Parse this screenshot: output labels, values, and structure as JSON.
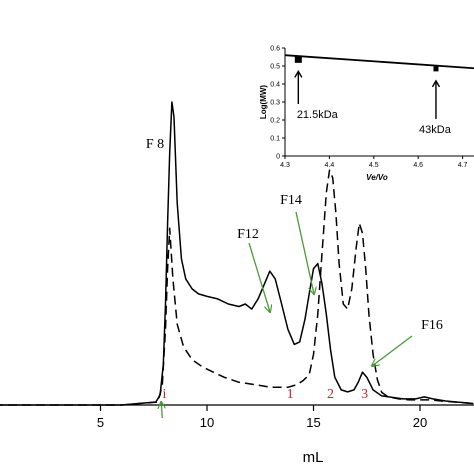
{
  "main": {
    "chart_data": {
      "type": "line",
      "xlabel": "mL",
      "ylabel": "",
      "xlim": [
        0,
        22.5
      ],
      "xticks": [
        5,
        10,
        15,
        20
      ],
      "grid": false,
      "series": [
        {
          "style": "solid",
          "x": [
            0,
            6,
            7.6,
            7.8,
            7.95,
            8.05,
            8.15,
            8.25,
            8.35,
            8.45,
            8.6,
            8.8,
            9.0,
            9.3,
            9.6,
            10,
            10.5,
            11,
            11.5,
            11.8,
            12.1,
            12.4,
            12.7,
            12.95,
            13.2,
            13.5,
            13.8,
            14.1,
            14.35,
            14.6,
            14.8,
            15.0,
            15.2,
            15.4,
            15.6,
            15.8,
            16,
            16.3,
            16.6,
            16.9,
            17.1,
            17.3,
            17.5,
            17.8,
            18.2,
            18.7,
            19.2,
            19.8,
            20.2,
            20.6,
            21.2,
            22.5
          ],
          "y": [
            0,
            0,
            0.6,
            2,
            8,
            20,
            36,
            50,
            60,
            57,
            40,
            29,
            25,
            23,
            22,
            21.5,
            21,
            20,
            19.5,
            20,
            19,
            21,
            24,
            26.5,
            25,
            20,
            15,
            12,
            12.5,
            17,
            22,
            27,
            28,
            24,
            18,
            11,
            5.5,
            3,
            2.6,
            3,
            4.5,
            6.5,
            5.5,
            3,
            1.8,
            1.5,
            1.2,
            1.2,
            1.6,
            1.2,
            0.8,
            0.3
          ]
        },
        {
          "style": "dashed",
          "x": [
            0,
            6,
            7.7,
            7.9,
            8.05,
            8.15,
            8.25,
            8.4,
            8.6,
            8.9,
            9.3,
            9.8,
            10.3,
            10.8,
            11.5,
            12.3,
            13,
            13.8,
            14.2,
            14.5,
            14.8,
            15.0,
            15.2,
            15.4,
            15.6,
            15.75,
            15.9,
            16.05,
            16.2,
            16.4,
            16.6,
            16.8,
            17.0,
            17.15,
            17.3,
            17.45,
            17.6,
            17.8,
            18.0,
            18.2,
            18.5,
            19,
            19.5,
            20,
            20.5,
            21,
            22.5
          ],
          "y": [
            0,
            0,
            0.6,
            4,
            15,
            27,
            35,
            25,
            16,
            11.5,
            9,
            7.5,
            6.5,
            5.5,
            4.5,
            4,
            3.5,
            3.5,
            4,
            4.8,
            6,
            10,
            18,
            30,
            42,
            46.5,
            45,
            38,
            28,
            20,
            19,
            23,
            31,
            36,
            34,
            27,
            18,
            10,
            5,
            2.5,
            1.6,
            1.2,
            1,
            1,
            1,
            0.8,
            0.3
          ]
        }
      ],
      "annotations": [
        {
          "text": "F 8",
          "target": [
            8.3,
            60
          ]
        },
        {
          "text": "F12",
          "target": [
            12.7,
            24
          ]
        },
        {
          "text": "F14",
          "target": [
            14.7,
            26
          ]
        },
        {
          "text": "F16",
          "target": [
            17.2,
            6
          ]
        }
      ],
      "fraction_labels": [
        {
          "text": "i",
          "x": 8.0
        },
        {
          "text": "1",
          "x": 13.9
        },
        {
          "text": "2",
          "x": 15.8
        },
        {
          "text": "3",
          "x": 17.4
        }
      ],
      "inset": {
        "type": "scatter",
        "xlabel": "Ve/Vo",
        "ylabel": "Log(MW)",
        "xlim": [
          4.3,
          4.8
        ],
        "ylim": [
          0,
          0.6
        ],
        "xticks": [
          "4.3",
          "4.4",
          "4.5",
          "4.6",
          "4.7"
        ],
        "yticks": [
          "0",
          "0.1",
          "0.2",
          "0.3",
          "0.4",
          "0.5",
          "0.6"
        ],
        "points": [
          {
            "x": 4.33,
            "y": 0.537
          },
          {
            "x": 4.64,
            "y": 0.484
          }
        ],
        "fit_line": {
          "x": [
            4.3,
            4.8
          ],
          "y": [
            0.56,
            0.475
          ]
        },
        "labels": [
          {
            "text": "21.5kDa",
            "x": 4.33
          },
          {
            "text": "43kDa",
            "x": 4.64
          }
        ]
      }
    }
  }
}
